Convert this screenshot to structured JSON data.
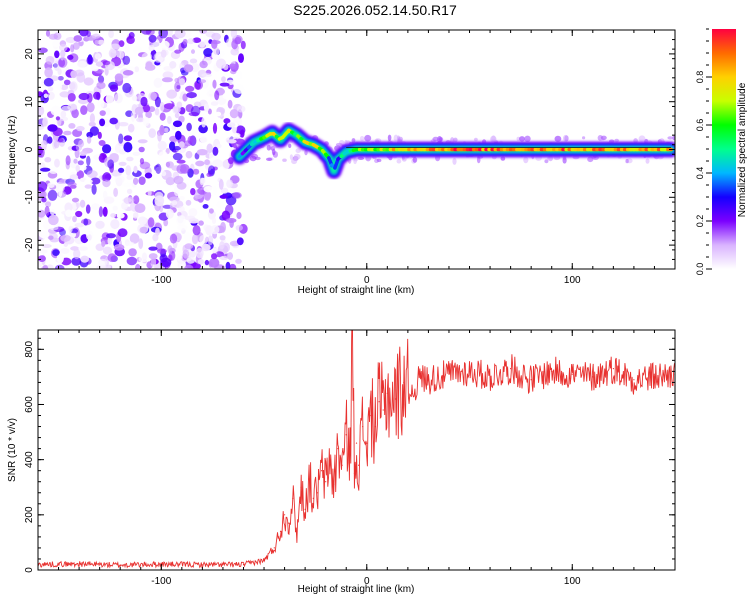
{
  "title": "S225.2026.052.14.50.R17",
  "chart_data": [
    {
      "type": "heatmap",
      "name": "spectrogram",
      "xlabel": "Height of straight line (km)",
      "ylabel": "Frequency (Hz)",
      "xlim": [
        -160,
        150
      ],
      "ylim": [
        -25,
        25
      ],
      "xticks": [
        -100,
        0,
        100
      ],
      "xtick_labels": [
        "-100",
        "0",
        "100"
      ],
      "yticks": [
        -20,
        -10,
        0,
        10,
        20
      ],
      "ytick_labels": [
        "-20",
        "-10",
        "0",
        "10",
        "20"
      ],
      "colorbar": {
        "label": "Normalized spectral amplitude",
        "range": [
          0.0,
          1.0
        ],
        "ticks": [
          0.0,
          0.2,
          0.4,
          0.6,
          0.8
        ],
        "tick_labels": [
          "0.0",
          "0.2",
          "0.4",
          "0.6",
          "0.8"
        ],
        "colors": [
          "#ffffff",
          "#d9b3ff",
          "#7b00ff",
          "#1400ff",
          "#00b7ff",
          "#00ff8c",
          "#00ff00",
          "#c8ff00",
          "#ffd000",
          "#ff6a00",
          "#ff0040"
        ]
      },
      "signal_ridge": {
        "height_km": [
          -62,
          -55,
          -50,
          -46,
          -42,
          -38,
          -34,
          -30,
          -26,
          -22,
          -18,
          -16,
          -14,
          -10,
          -5,
          0,
          10,
          20,
          40,
          60,
          80,
          100,
          120,
          140,
          148
        ],
        "frequency_hz": [
          -1.5,
          1.5,
          2.5,
          3.5,
          2.0,
          4.0,
          3.0,
          1.5,
          1.0,
          0.0,
          -2.0,
          -4.5,
          -2.0,
          -0.5,
          0.0,
          0.0,
          0.0,
          0.0,
          0.0,
          0.0,
          0.0,
          0.0,
          0.0,
          0.0,
          0.0
        ],
        "amplitude": [
          0.3,
          0.45,
          0.6,
          0.7,
          0.6,
          0.7,
          0.6,
          0.75,
          0.8,
          0.6,
          0.4,
          0.3,
          0.4,
          0.5,
          0.55,
          0.6,
          0.75,
          0.85,
          0.9,
          0.9,
          0.9,
          0.85,
          0.85,
          0.85,
          0.8
        ]
      },
      "noise_region_km": [
        -160,
        -62
      ],
      "noise_amplitude_range": [
        0.0,
        0.25
      ]
    },
    {
      "type": "line",
      "name": "snr",
      "xlabel": "Height of straight line (km)",
      "ylabel": "SNR (10 * v/v)",
      "xlim": [
        -160,
        150
      ],
      "ylim": [
        0,
        870
      ],
      "xticks": [
        -100,
        0,
        100
      ],
      "xtick_labels": [
        "-100",
        "0",
        "100"
      ],
      "yticks": [
        0,
        200,
        400,
        600,
        800
      ],
      "ytick_labels": [
        "0",
        "200",
        "400",
        "600",
        "800"
      ],
      "line_color": "#e8312f",
      "series": [
        {
          "name": "SNR",
          "x": [
            -160,
            -140,
            -120,
            -100,
            -80,
            -60,
            -50,
            -45,
            -42,
            -40,
            -38,
            -36,
            -34,
            -32,
            -30,
            -28,
            -26,
            -24,
            -22,
            -20,
            -18,
            -16,
            -14,
            -12,
            -10,
            -8,
            -7,
            -6,
            -5,
            -4,
            -2,
            0,
            2,
            4,
            6,
            8,
            10,
            14,
            18,
            22,
            26,
            30,
            40,
            50,
            60,
            70,
            80,
            90,
            100,
            110,
            120,
            130,
            140,
            150
          ],
          "y": [
            20,
            22,
            18,
            21,
            19,
            20,
            35,
            80,
            140,
            200,
            170,
            260,
            130,
            300,
            220,
            330,
            260,
            280,
            360,
            320,
            400,
            310,
            440,
            380,
            490,
            420,
            870,
            350,
            460,
            380,
            520,
            460,
            560,
            520,
            610,
            580,
            640,
            620,
            680,
            640,
            700,
            690,
            710,
            720,
            700,
            730,
            690,
            720,
            710,
            700,
            730,
            690,
            700,
            710
          ]
        }
      ]
    }
  ]
}
